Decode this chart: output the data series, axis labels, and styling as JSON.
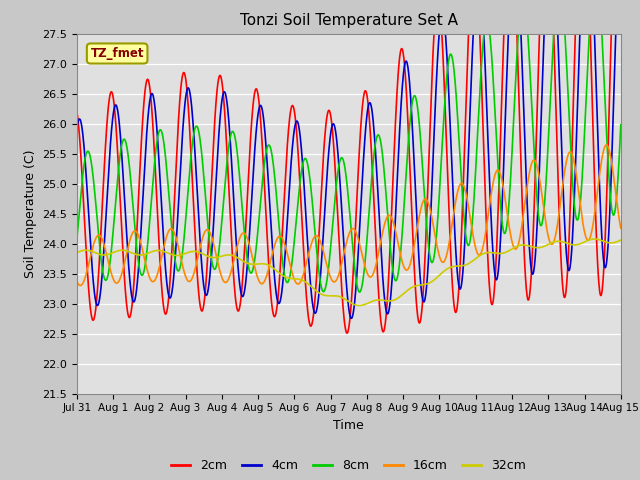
{
  "title": "Tonzi Soil Temperature Set A",
  "xlabel": "Time",
  "ylabel": "Soil Temperature (C)",
  "ylim": [
    21.5,
    27.5
  ],
  "label_box_text": "TZ_fmet",
  "colors": {
    "2cm": "#ff0000",
    "4cm": "#0000cc",
    "8cm": "#00cc00",
    "16cm": "#ff8800",
    "32cm": "#cccc00"
  },
  "legend_labels": [
    "2cm",
    "4cm",
    "8cm",
    "16cm",
    "32cm"
  ],
  "xtick_labels": [
    "Jul 31",
    "Aug 1",
    "Aug 2",
    "Aug 3",
    "Aug 4",
    "Aug 5",
    "Aug 6",
    "Aug 7",
    "Aug 8",
    "Aug 9",
    "Aug 10",
    "Aug 11",
    "Aug 12",
    "Aug 13",
    "Aug 14",
    "Aug 15"
  ],
  "fig_bg": "#c8c8c8",
  "axes_bg": "#e0e0e0",
  "grid_color": "#ffffff",
  "linewidth": 1.2
}
